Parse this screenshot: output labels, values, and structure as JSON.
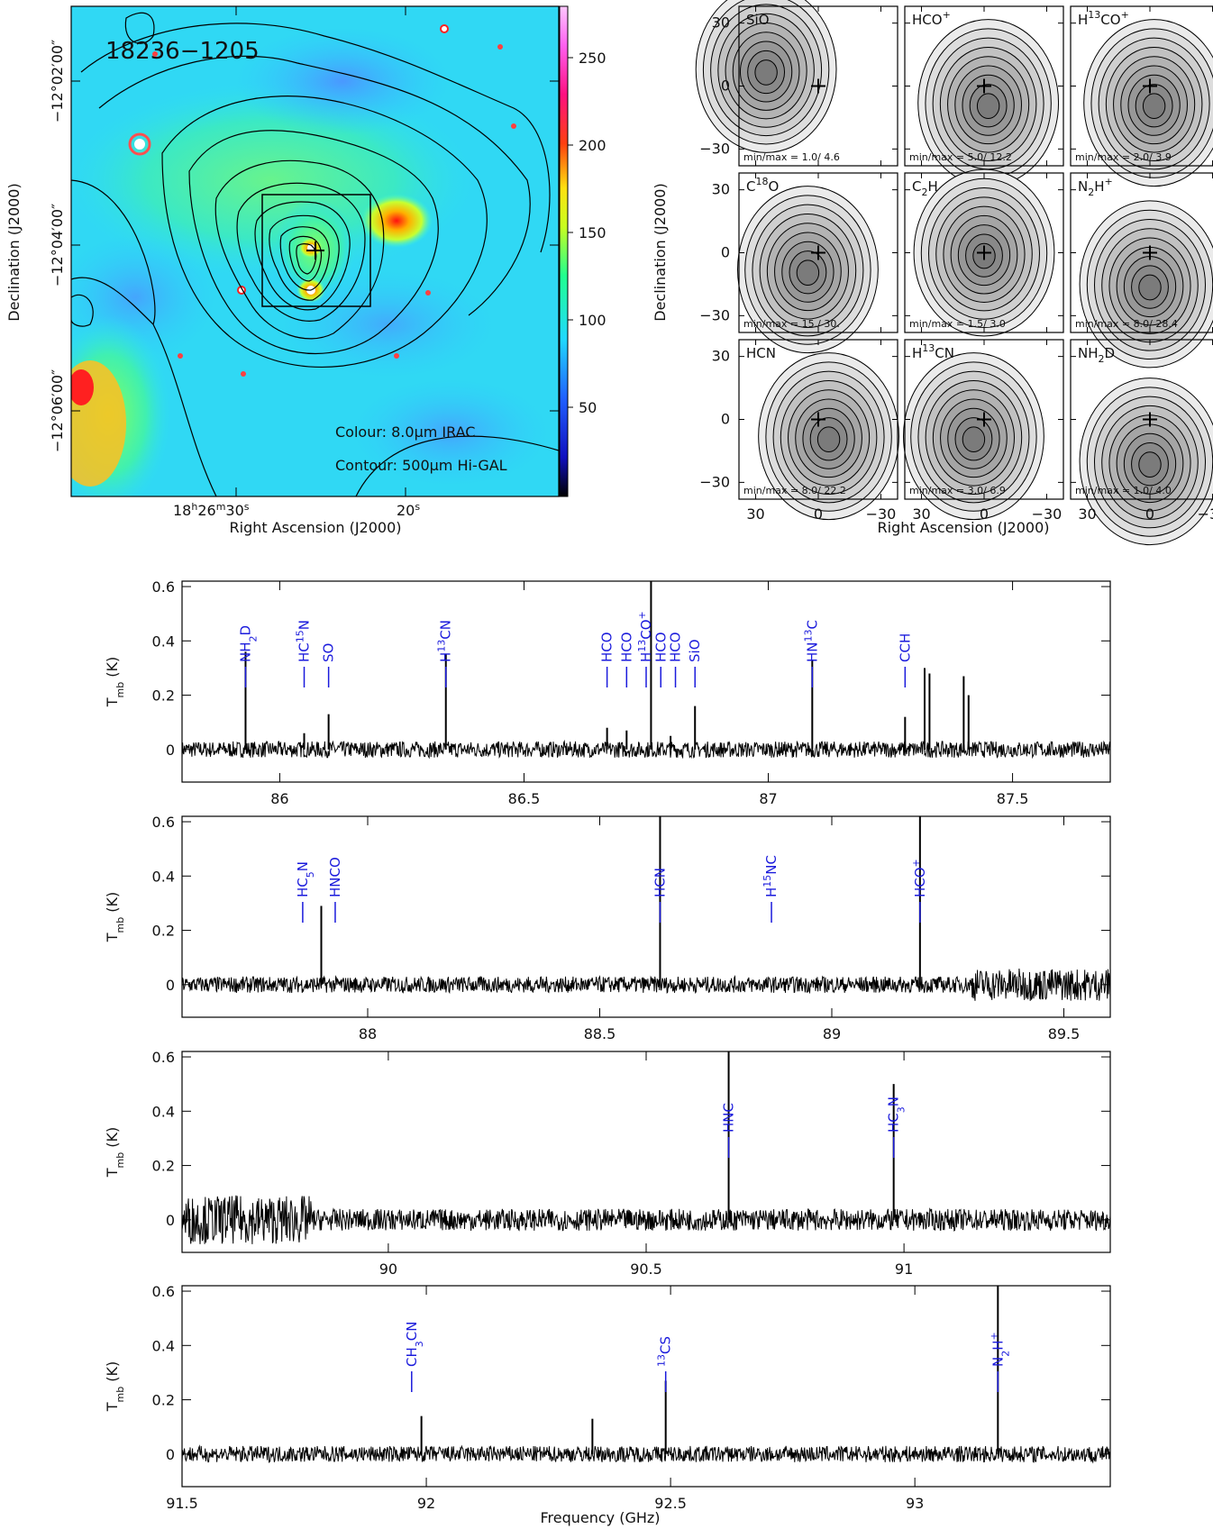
{
  "colors": {
    "line_label": "#1a1adc",
    "spectrum": "#000000"
  },
  "chart_data": [
    {
      "type": "heatmap",
      "title": "18236−1205",
      "xlabel": "Right Ascension (J2000)",
      "ylabel": "Declination (J2000)",
      "x_ticks": [
        "18h26m30s",
        "20s"
      ],
      "y_ticks": [
        "−12°02′00″",
        "−12°04′00″",
        "−12°06′00″"
      ],
      "colorbar_ticks": [
        50,
        100,
        150,
        200,
        250
      ],
      "colorbar_range": [
        0,
        280
      ],
      "annotations": [
        "Colour: 8.0μm IRAC",
        "Contour: 500μm Hi-GAL"
      ]
    },
    {
      "type": "heatmap",
      "xlabel": "Right Ascension (J2000)",
      "ylabel": "Declination (J2000)",
      "x_ticks": [
        30,
        0,
        -30
      ],
      "y_ticks": [
        30,
        0,
        -30
      ],
      "panels": [
        {
          "name": "SiO",
          "base": "SiO",
          "sup": "",
          "sub": "",
          "pre": "",
          "min": "1.0",
          "max": "4.6"
        },
        {
          "name": "HCO+",
          "base": "HCO",
          "sup": "+",
          "sub": "",
          "pre": "",
          "min": "5.0",
          "max": "12.2"
        },
        {
          "name": "H13CO+",
          "base": "H",
          "sup": "13",
          "sub": "",
          "pre": "",
          "tail": "CO",
          "tail_sup": "+",
          "min": "2.0",
          "max": "3.9"
        },
        {
          "name": "C18O",
          "base": "C",
          "sup": "18",
          "sub": "",
          "pre": "",
          "tail": "O",
          "tail_sup": "",
          "min": "15.",
          "max": "30."
        },
        {
          "name": "C2H",
          "base": "C",
          "sup": "",
          "sub": "2",
          "pre": "",
          "tail": "H",
          "tail_sup": "",
          "min": "1.5",
          "max": "3.0"
        },
        {
          "name": "N2H+",
          "base": "N",
          "sup": "",
          "sub": "2",
          "pre": "",
          "tail": "H",
          "tail_sup": "+",
          "min": "8.0",
          "max": "28.4"
        },
        {
          "name": "HCN",
          "base": "HCN",
          "sup": "",
          "sub": "",
          "pre": "",
          "min": "8.0",
          "max": "22.2"
        },
        {
          "name": "H13CN",
          "base": "H",
          "sup": "13",
          "sub": "",
          "pre": "",
          "tail": "CN",
          "tail_sup": "",
          "min": "3.0",
          "max": "6.9"
        },
        {
          "name": "NH2D",
          "base": "NH",
          "sup": "",
          "sub": "2",
          "pre": "",
          "tail": "D",
          "tail_sup": "",
          "min": "1.0",
          "max": "4.0"
        }
      ],
      "minmax_label": "min/max ="
    },
    {
      "type": "line",
      "ylabel": "Tmb (K)",
      "xlabel": "Frequency (GHz)",
      "ylim": [
        -0.12,
        0.62
      ],
      "y_ticks": [
        0,
        0.2,
        0.4,
        0.6
      ],
      "rows": [
        {
          "xlim": [
            85.8,
            87.7
          ],
          "x_ticks": [
            86,
            86.5,
            87,
            87.5
          ],
          "noise": 0.03,
          "peaks": [
            [
              85.93,
              0.36
            ],
            [
              86.05,
              0.06
            ],
            [
              86.1,
              0.13
            ],
            [
              86.34,
              0.35
            ],
            [
              86.67,
              0.08
            ],
            [
              86.71,
              0.07
            ],
            [
              86.76,
              0.66
            ],
            [
              86.8,
              0.05
            ],
            [
              86.85,
              0.16
            ],
            [
              87.09,
              0.33
            ],
            [
              87.28,
              0.12
            ],
            [
              87.32,
              0.3
            ],
            [
              87.33,
              0.28
            ],
            [
              87.4,
              0.27
            ],
            [
              87.41,
              0.2
            ]
          ],
          "lines": [
            {
              "label": "NH2D",
              "x": 85.93
            },
            {
              "label": "HC15N",
              "x": 86.05
            },
            {
              "label": "SO",
              "x": 86.1
            },
            {
              "label": "H13CN",
              "x": 86.34
            },
            {
              "label": "HCO",
              "x": 86.67
            },
            {
              "label": "HCO",
              "x": 86.71
            },
            {
              "label": "H13CO+",
              "x": 86.75
            },
            {
              "label": "HCO",
              "x": 86.78
            },
            {
              "label": "HCO",
              "x": 86.81
            },
            {
              "label": "SiO",
              "x": 86.85
            },
            {
              "label": "HN13C",
              "x": 87.09
            },
            {
              "label": "CCH",
              "x": 87.28
            }
          ]
        },
        {
          "xlim": [
            87.6,
            89.6
          ],
          "x_ticks": [
            88,
            88.5,
            89,
            89.5
          ],
          "noise": 0.03,
          "peaks": [
            [
              87.9,
              0.29
            ],
            [
              88.63,
              0.66
            ],
            [
              89.19,
              0.66
            ]
          ],
          "lines": [
            {
              "label": "HC5N",
              "x": 87.86
            },
            {
              "label": "HNCO",
              "x": 87.93
            },
            {
              "label": "HCN",
              "x": 88.63
            },
            {
              "label": "H15NC",
              "x": 88.87
            },
            {
              "label": "HCO+",
              "x": 89.19
            }
          ]
        },
        {
          "xlim": [
            89.6,
            91.4
          ],
          "x_ticks": [
            90,
            90.5,
            91
          ],
          "noise": 0.04,
          "peaks": [
            [
              90.66,
              0.66
            ],
            [
              90.98,
              0.5
            ]
          ],
          "lines": [
            {
              "label": "HNC",
              "x": 90.66
            },
            {
              "label": "HC3N",
              "x": 90.98
            }
          ]
        },
        {
          "xlim": [
            91.5,
            93.4
          ],
          "x_ticks": [
            91.5,
            92,
            92.5,
            93
          ],
          "noise": 0.03,
          "peaks": [
            [
              91.99,
              0.14
            ],
            [
              92.34,
              0.13
            ],
            [
              92.49,
              0.27
            ],
            [
              93.17,
              0.66
            ]
          ],
          "lines": [
            {
              "label": "CH3CN",
              "x": 91.97
            },
            {
              "label": "13CS",
              "x": 92.49
            },
            {
              "label": "N2H+",
              "x": 93.17
            }
          ]
        }
      ]
    }
  ],
  "texts": {
    "title": "18236−1205",
    "irac": "Colour: 8.0",
    "irac_unit": "μm IRAC",
    "higal": "Contour: 500",
    "higal_unit": "μm Hi-GAL",
    "ra_label": "Right Ascension (J2000)",
    "dec_label": "Declination (J2000)",
    "ra_tick_1_h": "18",
    "ra_tick_1_m": "26",
    "ra_tick_1_s": "30",
    "ra_tick_2_s": "20",
    "dec_tick_1": "−12°02′00″",
    "dec_tick_2": "−12°04′00″",
    "dec_tick_3": "−12°06′00″",
    "cb_50": "50",
    "cb_100": "100",
    "cb_150": "150",
    "cb_200": "200",
    "cb_250": "250",
    "freq_label": "Frequency (GHz)",
    "tmb_label_T": "T",
    "tmb_label_sub": "mb",
    "tmb_label_unit": " (K)"
  }
}
